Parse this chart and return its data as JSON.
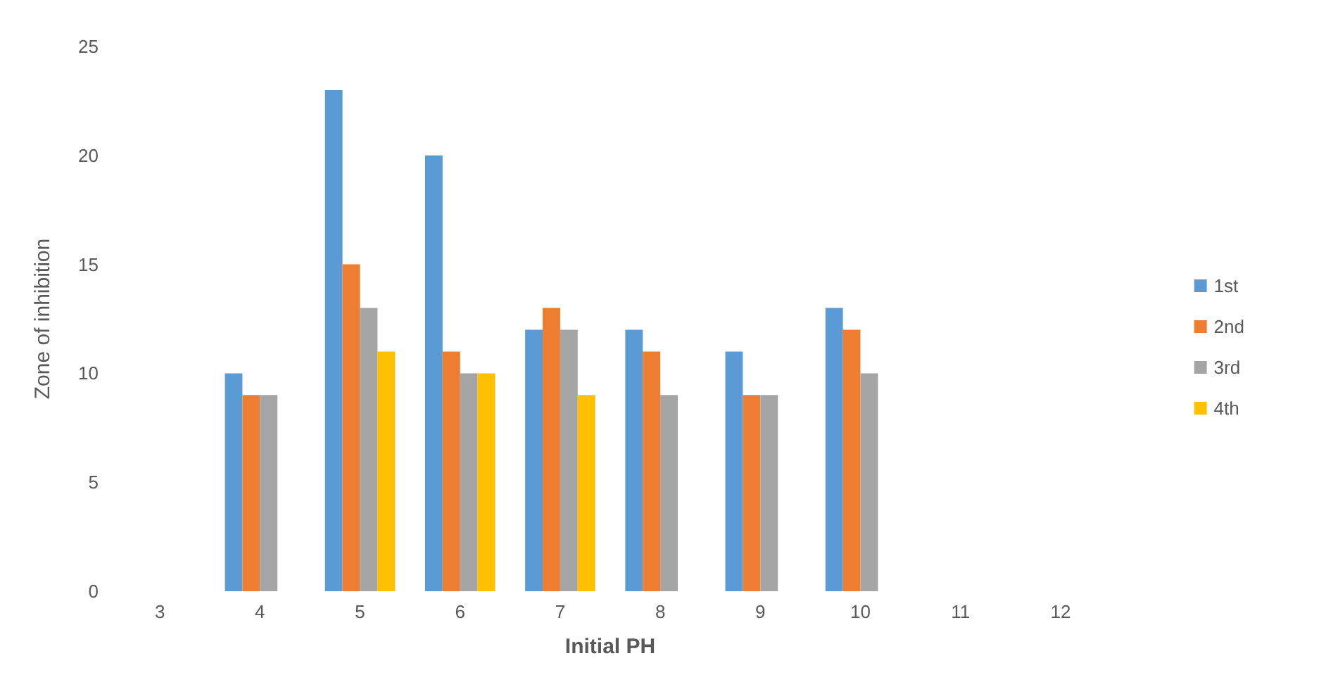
{
  "chart_data": {
    "type": "bar",
    "xlabel": "Initial PH",
    "ylabel": "Zone of inhibition",
    "categories": [
      "3",
      "4",
      "5",
      "6",
      "7",
      "8",
      "9",
      "10",
      "11",
      "12"
    ],
    "series": [
      {
        "name": "1st",
        "color": "#5b9bd5",
        "values": [
          null,
          10,
          23,
          20,
          12,
          12,
          11,
          13,
          null,
          null
        ]
      },
      {
        "name": "2nd",
        "color": "#ed7d31",
        "values": [
          null,
          9,
          15,
          11,
          13,
          11,
          9,
          12,
          null,
          null
        ]
      },
      {
        "name": "3rd",
        "color": "#a5a5a5",
        "values": [
          null,
          9,
          13,
          10,
          12,
          9,
          9,
          10,
          null,
          null
        ]
      },
      {
        "name": "4th",
        "color": "#ffc000",
        "values": [
          null,
          null,
          11,
          10,
          9,
          null,
          null,
          null,
          null,
          null
        ]
      }
    ],
    "ylim": [
      0,
      25
    ],
    "yticks": [
      0,
      5,
      10,
      15,
      20,
      25
    ],
    "grid": false,
    "legend": "right"
  }
}
